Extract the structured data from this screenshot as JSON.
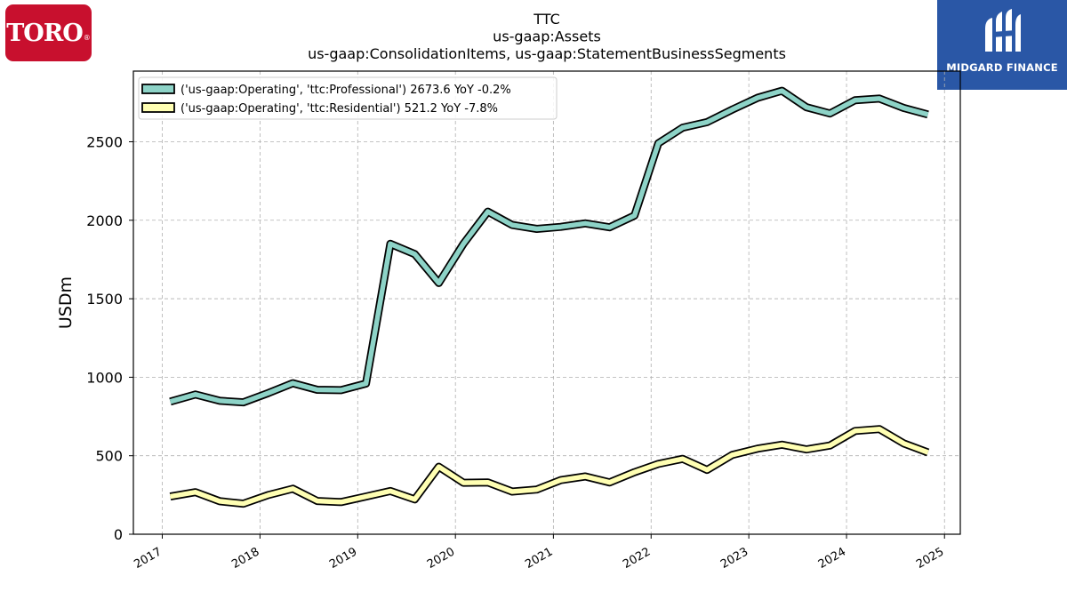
{
  "logos": {
    "left": {
      "text": "TORO",
      "mark": "®",
      "color": "#c8102e"
    },
    "right": {
      "text": "MIDGARD FINANCE",
      "color": "#2a57a6"
    }
  },
  "chart_data": {
    "type": "line",
    "title": [
      "TTC",
      "us-gaap:Assets",
      "us-gaap:ConsolidationItems, us-gaap:StatementBusinessSegments"
    ],
    "ylabel": "USDm",
    "xlabel": "",
    "ylim": [
      0,
      2950
    ],
    "xlim": [
      "2016-09-15",
      "2025-03-01"
    ],
    "yticks": [
      0,
      500,
      1000,
      1500,
      2000,
      2500
    ],
    "xticks": [
      "2017",
      "2018",
      "2019",
      "2020",
      "2021",
      "2022",
      "2023",
      "2024",
      "2025"
    ],
    "grid": true,
    "legend_position": "top-left",
    "series": [
      {
        "name": "('us-gaap:Operating', 'ttc:Professional') 2673.6 YoY -0.2%",
        "color": "#8dd3c7",
        "points": [
          [
            "2017-01-31",
            845
          ],
          [
            "2017-05-05",
            890
          ],
          [
            "2017-08-04",
            850
          ],
          [
            "2017-10-31",
            840
          ],
          [
            "2018-02-02",
            900
          ],
          [
            "2018-05-04",
            962
          ],
          [
            "2018-08-03",
            920
          ],
          [
            "2018-10-31",
            918
          ],
          [
            "2019-02-01",
            960
          ],
          [
            "2019-05-03",
            1850
          ],
          [
            "2019-08-02",
            1785
          ],
          [
            "2019-10-31",
            1600
          ],
          [
            "2020-01-31",
            1850
          ],
          [
            "2020-05-01",
            2055
          ],
          [
            "2020-07-31",
            1970
          ],
          [
            "2020-10-31",
            1945
          ],
          [
            "2021-01-29",
            1958
          ],
          [
            "2021-04-30",
            1980
          ],
          [
            "2021-07-30",
            1955
          ],
          [
            "2021-10-31",
            2030
          ],
          [
            "2022-01-28",
            2490
          ],
          [
            "2022-04-29",
            2590
          ],
          [
            "2022-07-29",
            2625
          ],
          [
            "2022-10-31",
            2705
          ],
          [
            "2023-02-03",
            2780
          ],
          [
            "2023-05-05",
            2825
          ],
          [
            "2023-08-04",
            2720
          ],
          [
            "2023-10-31",
            2680
          ],
          [
            "2024-02-02",
            2765
          ],
          [
            "2024-05-03",
            2775
          ],
          [
            "2024-08-02",
            2715
          ],
          [
            "2024-10-31",
            2673.6
          ]
        ]
      },
      {
        "name": "('us-gaap:Operating', 'ttc:Residential') 521.2 YoY -7.8%",
        "color": "#ffffb3",
        "points": [
          [
            "2017-01-31",
            240
          ],
          [
            "2017-05-05",
            268
          ],
          [
            "2017-08-04",
            210
          ],
          [
            "2017-10-31",
            195
          ],
          [
            "2018-02-02",
            250
          ],
          [
            "2018-05-04",
            290
          ],
          [
            "2018-08-03",
            212
          ],
          [
            "2018-10-31",
            205
          ],
          [
            "2019-02-01",
            240
          ],
          [
            "2019-05-03",
            275
          ],
          [
            "2019-08-02",
            222
          ],
          [
            "2019-10-31",
            430
          ],
          [
            "2020-01-31",
            328
          ],
          [
            "2020-05-01",
            330
          ],
          [
            "2020-07-31",
            272
          ],
          [
            "2020-10-31",
            285
          ],
          [
            "2021-01-29",
            345
          ],
          [
            "2021-04-30",
            368
          ],
          [
            "2021-07-30",
            330
          ],
          [
            "2021-10-31",
            395
          ],
          [
            "2022-01-28",
            448
          ],
          [
            "2022-04-29",
            480
          ],
          [
            "2022-07-29",
            410
          ],
          [
            "2022-10-31",
            505
          ],
          [
            "2023-02-03",
            545
          ],
          [
            "2023-05-05",
            570
          ],
          [
            "2023-08-04",
            540
          ],
          [
            "2023-10-31",
            565
          ],
          [
            "2024-02-02",
            658
          ],
          [
            "2024-05-03",
            670
          ],
          [
            "2024-08-02",
            578
          ],
          [
            "2024-10-31",
            521.2
          ]
        ]
      }
    ]
  }
}
